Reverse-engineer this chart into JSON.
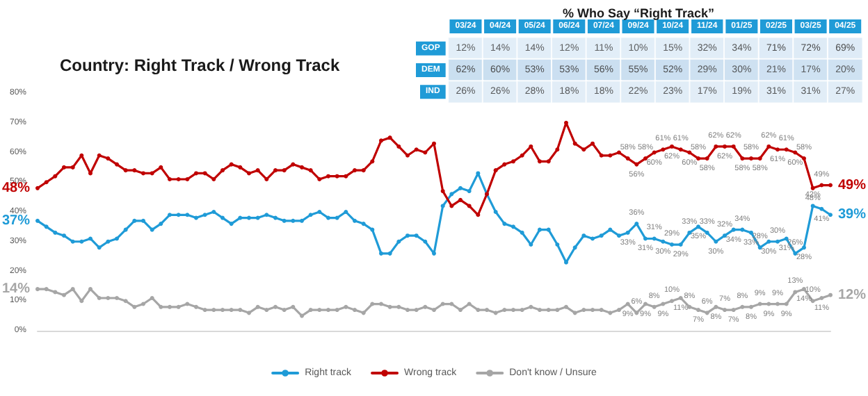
{
  "chart_data": [
    {
      "type": "line",
      "title": "Country: Right Track / Wrong Track",
      "categories": [
        null,
        null,
        null,
        null,
        null,
        null,
        null,
        null,
        null,
        null,
        null,
        null,
        null,
        null,
        null,
        null,
        null,
        null,
        null,
        null,
        null,
        null,
        null,
        null,
        null,
        null,
        null,
        null,
        null,
        null,
        null,
        null,
        null,
        null,
        null,
        null,
        null,
        null,
        null,
        null,
        null,
        null,
        null,
        null,
        null,
        null,
        null,
        null,
        null,
        null,
        null,
        null,
        null,
        null,
        null,
        null,
        null,
        null,
        null,
        null,
        null,
        null,
        null,
        null,
        null,
        null,
        null,
        null,
        null,
        null,
        null,
        null,
        null,
        null,
        null,
        null,
        null,
        null,
        null,
        null,
        null,
        null,
        null,
        null,
        null,
        null,
        null,
        null,
        null,
        null,
        null
      ],
      "series": [
        {
          "name": "Right track",
          "color": "#1f9bd7",
          "values": [
            37,
            35,
            33,
            32,
            30,
            30,
            31,
            28,
            30,
            31,
            34,
            37,
            37,
            34,
            36,
            39,
            39,
            39,
            38,
            39,
            40,
            38,
            36,
            38,
            38,
            38,
            39,
            38,
            37,
            37,
            37,
            39,
            40,
            38,
            38,
            40,
            37,
            36,
            34,
            26,
            26,
            30,
            32,
            32,
            30,
            26,
            42,
            46,
            48,
            47,
            53,
            46,
            40,
            36,
            35,
            33,
            29,
            34,
            34,
            29,
            23,
            28,
            32,
            31,
            32,
            34,
            32,
            33,
            36,
            31,
            31,
            30,
            29,
            29,
            33,
            35,
            33,
            30,
            32,
            34,
            34,
            33,
            28,
            30,
            30,
            31,
            26,
            28,
            42,
            41,
            39
          ],
          "value_labels": [
            "37%",
            null,
            null,
            null,
            null,
            null,
            null,
            null,
            null,
            null,
            null,
            null,
            null,
            null,
            null,
            null,
            null,
            null,
            null,
            null,
            null,
            null,
            null,
            null,
            null,
            null,
            null,
            null,
            null,
            null,
            null,
            null,
            null,
            null,
            null,
            null,
            null,
            null,
            null,
            null,
            null,
            null,
            null,
            null,
            null,
            null,
            null,
            null,
            null,
            null,
            null,
            null,
            null,
            null,
            null,
            null,
            null,
            null,
            null,
            null,
            null,
            null,
            null,
            null,
            null,
            null,
            null,
            "33%",
            "36%",
            "31%",
            "31%",
            "30%",
            "29%",
            "29%",
            "33%",
            "35%",
            "33%",
            "30%",
            "32%",
            "34%",
            "34%",
            "33%",
            "28%",
            "30%",
            "30%",
            "31%",
            "26%",
            "28%",
            "42%",
            "41%",
            "39%"
          ]
        },
        {
          "name": "Wrong track",
          "color": "#c00000",
          "values": [
            48,
            50,
            52,
            55,
            55,
            59,
            53,
            59,
            58,
            56,
            54,
            54,
            53,
            53,
            55,
            51,
            51,
            51,
            53,
            53,
            51,
            54,
            56,
            55,
            53,
            54,
            51,
            54,
            54,
            56,
            55,
            54,
            51,
            52,
            52,
            52,
            54,
            54,
            57,
            64,
            65,
            62,
            59,
            61,
            60,
            63,
            47,
            42,
            44,
            42,
            39,
            46,
            54,
            56,
            57,
            59,
            62,
            57,
            57,
            61,
            70,
            63,
            61,
            63,
            59,
            59,
            60,
            58,
            56,
            58,
            60,
            61,
            62,
            61,
            60,
            58,
            58,
            62,
            62,
            62,
            58,
            58,
            58,
            62,
            61,
            61,
            60,
            58,
            48,
            49,
            49
          ],
          "value_labels": [
            "48%",
            null,
            null,
            null,
            null,
            null,
            null,
            null,
            null,
            null,
            null,
            null,
            null,
            null,
            null,
            null,
            null,
            null,
            null,
            null,
            null,
            null,
            null,
            null,
            null,
            null,
            null,
            null,
            null,
            null,
            null,
            null,
            null,
            null,
            null,
            null,
            null,
            null,
            null,
            null,
            null,
            null,
            null,
            null,
            null,
            null,
            null,
            null,
            null,
            null,
            null,
            null,
            null,
            null,
            null,
            null,
            null,
            null,
            null,
            null,
            null,
            null,
            null,
            null,
            null,
            null,
            null,
            "58%",
            "56%",
            "58%",
            "60%",
            "61%",
            "62%",
            "61%",
            "60%",
            "58%",
            "58%",
            "62%",
            "62%",
            "62%",
            "58%",
            "58%",
            "58%",
            "62%",
            "61%",
            "61%",
            "60%",
            "58%",
            "48%",
            "49%",
            "49%"
          ]
        },
        {
          "name": "Don't know / Unsure",
          "color": "#a6a6a6",
          "values": [
            14,
            14,
            13,
            12,
            14,
            10,
            14,
            11,
            11,
            11,
            10,
            8,
            9,
            11,
            8,
            8,
            8,
            9,
            8,
            7,
            7,
            7,
            7,
            7,
            6,
            8,
            7,
            8,
            7,
            8,
            5,
            7,
            7,
            7,
            7,
            8,
            7,
            6,
            9,
            9,
            8,
            8,
            7,
            7,
            8,
            7,
            9,
            9,
            7,
            9,
            7,
            7,
            6,
            7,
            7,
            7,
            8,
            7,
            7,
            7,
            8,
            6,
            7,
            7,
            7,
            6,
            7,
            9,
            6,
            9,
            8,
            9,
            10,
            11,
            8,
            7,
            6,
            8,
            7,
            7,
            8,
            8,
            9,
            9,
            9,
            9,
            13,
            14,
            10,
            11,
            12
          ],
          "value_labels": [
            "14%",
            null,
            null,
            null,
            null,
            null,
            null,
            null,
            null,
            null,
            null,
            null,
            null,
            null,
            null,
            null,
            null,
            null,
            null,
            null,
            null,
            null,
            null,
            null,
            null,
            null,
            null,
            null,
            null,
            null,
            null,
            null,
            null,
            null,
            null,
            null,
            null,
            null,
            null,
            null,
            null,
            null,
            null,
            null,
            null,
            null,
            null,
            null,
            null,
            null,
            null,
            null,
            null,
            null,
            null,
            null,
            null,
            null,
            null,
            null,
            null,
            null,
            null,
            null,
            null,
            null,
            null,
            "9%",
            "6%",
            "9%",
            "8%",
            "9%",
            "10%",
            "11%",
            "8%",
            "7%",
            "6%",
            "8%",
            "7%",
            "7%",
            "8%",
            "8%",
            "9%",
            "9%",
            "9%",
            "9%",
            "13%",
            "14%",
            "10%",
            "11%",
            "12%"
          ]
        }
      ],
      "ylim": [
        0,
        80
      ],
      "yticks": [
        {
          "value": 0,
          "label": "0%"
        },
        {
          "value": 10,
          "label": "10%"
        },
        {
          "value": 20,
          "label": "20%"
        },
        {
          "value": 30,
          "label": "30%"
        },
        {
          "value": 40,
          "label": "40%"
        },
        {
          "value": 50,
          "label": "50%"
        },
        {
          "value": 60,
          "label": "60%"
        },
        {
          "value": 70,
          "label": "70%"
        },
        {
          "value": 80,
          "label": "80%"
        }
      ],
      "marker": "circle",
      "legend": "bottom"
    },
    {
      "type": "heatmap",
      "title": "% Who Say “Right Track”",
      "categories": [
        "03/24",
        "04/24",
        "05/24",
        "06/24",
        "07/24",
        "09/24",
        "10/24",
        "11/24",
        "01/25",
        "02/25",
        "03/25",
        "04/25"
      ],
      "y_categories": [
        "GOP",
        "DEM",
        "IND"
      ],
      "cells": [
        [
          12,
          14,
          14,
          12,
          11,
          10,
          15,
          32,
          34,
          71,
          72,
          69
        ],
        [
          62,
          60,
          53,
          53,
          56,
          55,
          52,
          29,
          30,
          21,
          17,
          20
        ],
        [
          26,
          26,
          28,
          18,
          18,
          22,
          23,
          17,
          19,
          31,
          31,
          27
        ]
      ],
      "cell_labels": [
        [
          "12%",
          "14%",
          "14%",
          "12%",
          "11%",
          "10%",
          "15%",
          "32%",
          "34%",
          "71%",
          "72%",
          "69%"
        ],
        [
          "62%",
          "60%",
          "53%",
          "53%",
          "56%",
          "55%",
          "52%",
          "29%",
          "30%",
          "21%",
          "17%",
          "20%"
        ],
        [
          "26%",
          "26%",
          "28%",
          "18%",
          "18%",
          "22%",
          "23%",
          "17%",
          "19%",
          "31%",
          "31%",
          "27%"
        ]
      ]
    }
  ]
}
